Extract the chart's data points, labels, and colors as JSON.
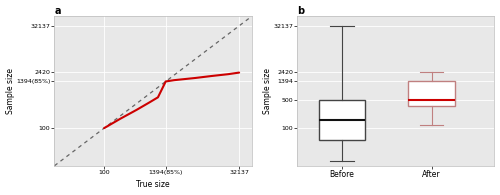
{
  "panel_a": {
    "title": "a",
    "xlabel": "True size",
    "ylabel": "Sample size",
    "xtick_vals": [
      100,
      1394,
      32137
    ],
    "xtick_labels": [
      "100",
      "1394(85%)",
      "32137"
    ],
    "ytick_vals": [
      100,
      1394,
      2420,
      32137
    ],
    "ytick_labels": [
      "100",
      "1394(85%)",
      "2420",
      "32137"
    ],
    "xlim": [
      12,
      55000
    ],
    "ylim": [
      12,
      55000
    ],
    "diag_color": "#666666",
    "line_color": "#cc0000",
    "bg_color": "#e8e8e8",
    "grid_color": "#ffffff",
    "curve_x": [
      100,
      200,
      400,
      700,
      1000,
      1394,
      2000,
      5000,
      10000,
      20000,
      32137
    ],
    "curve_y": [
      100,
      170,
      280,
      430,
      570,
      1394,
      1500,
      1700,
      1900,
      2100,
      2300
    ]
  },
  "panel_b": {
    "title": "b",
    "ylabel": "Sample size",
    "ytick_vals": [
      100,
      500,
      1394,
      2420,
      32137
    ],
    "ytick_labels": [
      "100",
      "500",
      "1394",
      "2420",
      "32137"
    ],
    "ylim": [
      12,
      55000
    ],
    "categories": [
      "Before",
      "After"
    ],
    "before_box": {
      "q1": 50,
      "median": 160,
      "q3": 500,
      "whisker_low": 16,
      "whisker_high": 32137,
      "color": "#444444",
      "medcolor": "#111111"
    },
    "after_box": {
      "q1": 350,
      "median": 490,
      "q3": 1394,
      "whisker_low": 120,
      "whisker_high": 2420,
      "color": "#c08080",
      "medcolor": "#cc0000"
    },
    "bg_color": "#e8e8e8",
    "grid_color": "#ffffff"
  }
}
